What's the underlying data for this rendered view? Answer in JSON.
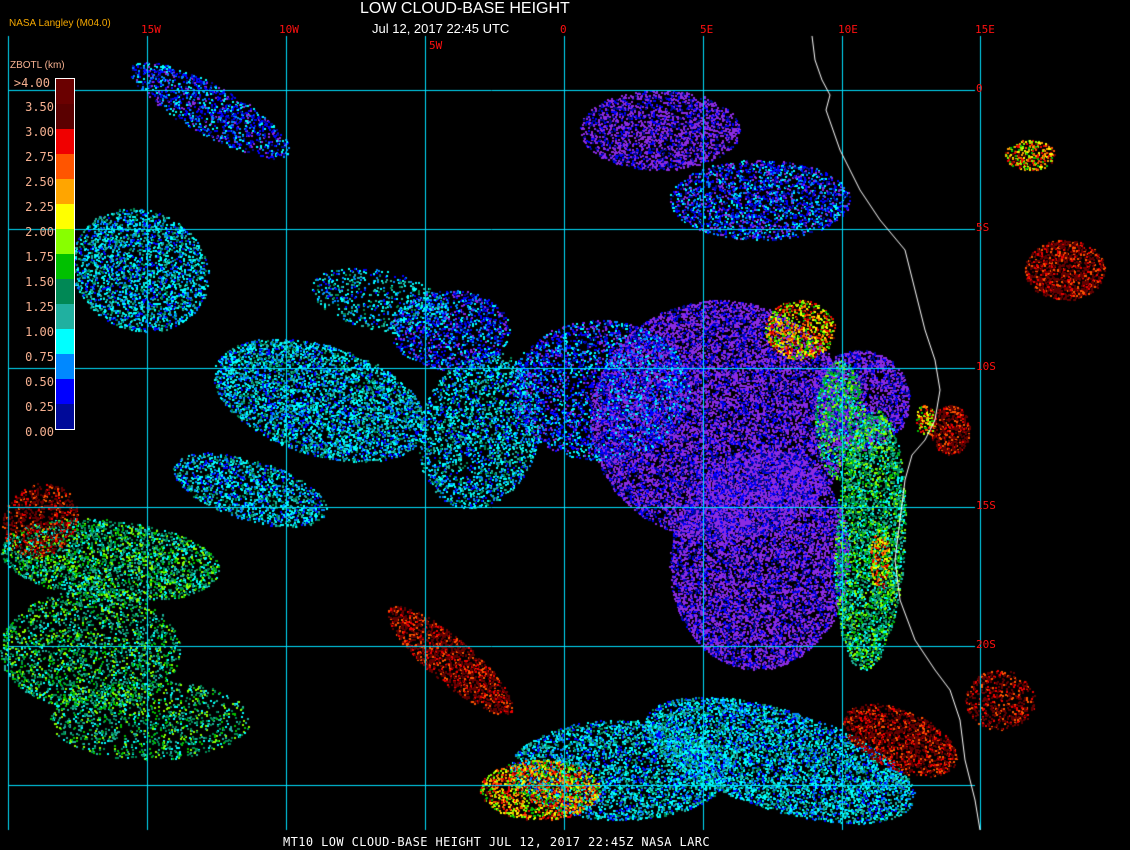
{
  "header": {
    "title": "LOW CLOUD-BASE HEIGHT",
    "subtitle": "Jul 12, 2017 22:45 UTC",
    "organization": "NASA Langley (M04.0)"
  },
  "map": {
    "longitude_labels": [
      "15W",
      "10W",
      "5W",
      "0",
      "5E",
      "10E",
      "15E"
    ],
    "latitude_labels": [
      "0",
      "5S",
      "10S",
      "15S",
      "20S"
    ],
    "grid_color": "#00e0ff",
    "label_color": "#ff1010",
    "coastline_color": "#ffffff"
  },
  "legend": {
    "title": "ZBOTL (km)",
    "labels": [
      ">4.00",
      "3.50",
      "3.00",
      "2.75",
      "2.50",
      "2.25",
      "2.00",
      "1.75",
      "1.50",
      "1.25",
      "1.00",
      "0.75",
      "0.50",
      "0.25",
      "0.00"
    ],
    "colors": [
      "#6a0000",
      "#5a0000",
      "#f00000",
      "#ff5500",
      "#ffa500",
      "#ffff00",
      "#88ff00",
      "#00c000",
      "#008855",
      "#20b0a0",
      "#00ffff",
      "#0088ff",
      "#0000ff",
      "#000a99",
      "#8a2be2"
    ]
  },
  "caption": "MT10  LOW CLOUD-BASE HEIGHT   JUL 12, 2017 22:45Z   NASA LARC"
}
